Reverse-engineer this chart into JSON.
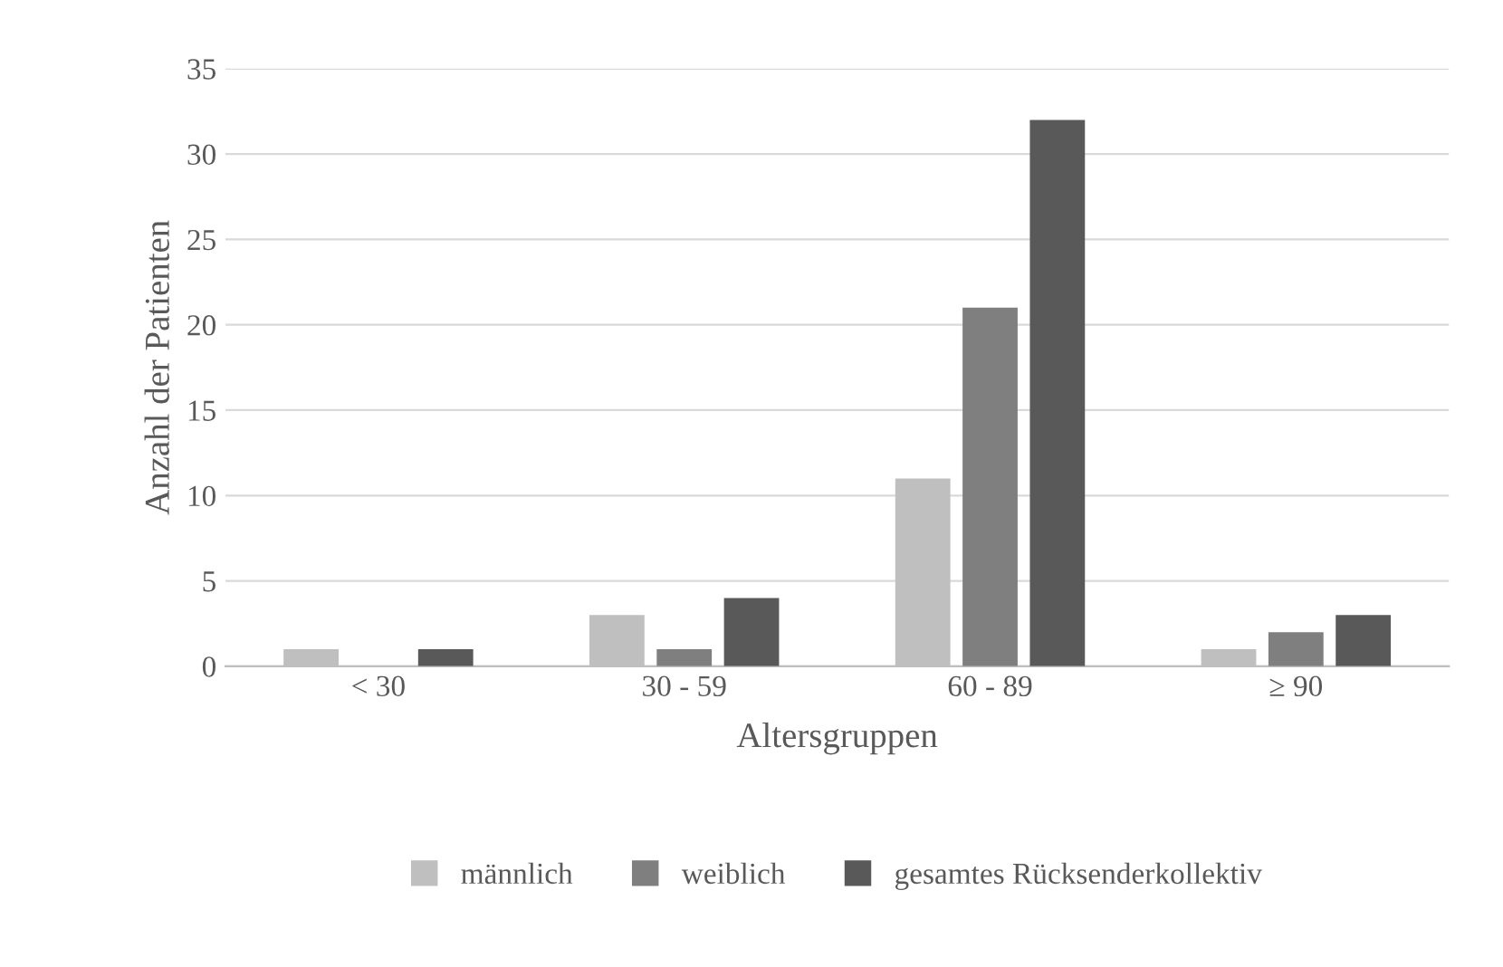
{
  "chart_data": {
    "type": "bar",
    "xlabel": "Altersgruppen",
    "ylabel": "Anzahl der Patienten",
    "categories": [
      "< 30",
      "30 - 59",
      "60 - 89",
      "≥ 90"
    ],
    "series": [
      {
        "name": "männlich",
        "color": "#bfbfbf",
        "values": [
          1,
          3,
          11,
          1
        ]
      },
      {
        "name": "weiblich",
        "color": "#7f7f7f",
        "values": [
          0,
          1,
          21,
          2
        ]
      },
      {
        "name": "gesamtes Rücksenderkollektiv",
        "color": "#595959",
        "values": [
          1,
          4,
          32,
          3
        ]
      }
    ],
    "ylim": [
      0,
      35
    ],
    "yticks": [
      0,
      5,
      10,
      15,
      20,
      25,
      30,
      35
    ],
    "grid": "y",
    "legend": "bottom"
  }
}
